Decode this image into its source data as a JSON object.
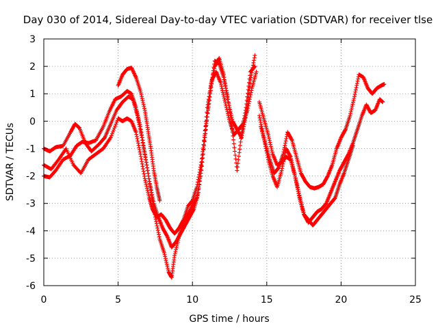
{
  "chart_data": {
    "type": "scatter",
    "title": "Day 030 of 2014, Sidereal Day-to-day VTEC variation (SDTVAR) for receiver tlse",
    "xlabel": "GPS time / hours",
    "ylabel": "SDTVAR / TECUs",
    "xlim": [
      0,
      25
    ],
    "ylim": [
      -6,
      3
    ],
    "x_ticks": [
      "0",
      "5",
      "10",
      "15",
      "20",
      "25"
    ],
    "y_ticks": [
      "3",
      "2",
      "1",
      "0",
      "-1",
      "-2",
      "-3",
      "-4",
      "-5",
      "-6"
    ],
    "grid": true,
    "legend": "none",
    "marker": "plus",
    "color": "#ff0000",
    "series": [
      {
        "x": [
          0,
          0.4,
          0.8,
          1.3,
          1.8,
          2.2,
          2.6,
          3.0,
          3.5,
          4.0,
          4.4,
          4.8,
          5.2,
          5.6,
          5.9,
          6.2,
          6.5,
          6.8,
          7.1,
          7.4,
          7.7,
          8.0,
          8.3,
          8.6,
          8.9,
          9.2,
          9.5,
          9.8,
          10.1,
          10.4,
          10.7,
          11.0,
          11.3,
          11.6,
          11.9,
          12.2,
          12.5,
          12.8,
          13.1,
          13.4,
          13.7,
          14.0,
          14.3
        ],
        "y": [
          -2.0,
          -2.05,
          -1.8,
          -1.4,
          -1.25,
          -0.9,
          -0.75,
          -0.8,
          -0.7,
          -0.2,
          0.35,
          0.8,
          0.9,
          1.1,
          1.0,
          0.5,
          -0.2,
          -1.2,
          -2.2,
          -3.0,
          -3.5,
          -3.9,
          -4.2,
          -4.6,
          -4.4,
          -4.1,
          -3.8,
          -3.5,
          -3.2,
          -2.6,
          -1.2,
          0.5,
          1.5,
          1.8,
          1.4,
          0.7,
          0.0,
          -0.5,
          -0.3,
          -0.1,
          0.4,
          1.2,
          1.8
        ]
      },
      {
        "x": [
          0,
          0.4,
          0.8,
          1.3,
          1.8,
          2.1,
          2.4,
          2.8,
          3.2,
          3.7,
          4.1,
          4.5,
          4.9,
          5.3,
          5.7,
          6.0,
          6.3,
          6.6,
          6.9,
          7.2,
          7.5,
          7.8,
          8.1,
          8.4,
          8.6,
          8.8,
          9.1,
          9.4,
          9.7,
          10.0,
          10.3,
          10.6,
          10.9,
          11.2,
          11.5,
          11.8,
          12.1,
          12.4,
          12.7,
          13.0,
          13.3,
          13.6,
          13.9,
          14.2
        ],
        "y": [
          -1.0,
          -1.1,
          -0.95,
          -0.9,
          -0.4,
          -0.1,
          -0.25,
          -0.8,
          -1.1,
          -0.85,
          -0.6,
          -0.1,
          0.4,
          0.7,
          0.9,
          0.8,
          0.2,
          -0.6,
          -1.5,
          -2.5,
          -3.5,
          -4.3,
          -4.8,
          -5.5,
          -5.7,
          -4.9,
          -4.2,
          -3.7,
          -3.4,
          -3.1,
          -2.8,
          -1.8,
          -0.3,
          1.2,
          2.0,
          2.3,
          1.7,
          0.7,
          0.0,
          -0.3,
          -0.6,
          0.2,
          1.5,
          2.4
        ]
      },
      {
        "x": [
          0,
          0.5,
          1.0,
          1.5,
          2.0,
          2.5,
          3.0,
          3.5,
          4.0,
          4.5,
          5.0,
          5.3,
          5.6,
          5.9,
          6.2,
          6.5,
          6.8,
          7.1,
          7.3,
          7.6,
          7.9,
          8.2,
          8.5,
          8.8,
          9.1,
          9.4,
          9.7,
          10.0,
          10.3,
          10.6,
          10.9,
          11.2,
          11.5,
          11.8,
          12.1,
          12.4,
          12.7,
          13.0,
          13.3,
          13.6,
          13.9,
          14.2
        ],
        "y": [
          -1.6,
          -1.75,
          -1.4,
          -1.0,
          -1.6,
          -1.9,
          -1.4,
          -1.2,
          -1.0,
          -0.6,
          0.1,
          0.0,
          0.1,
          0.0,
          -0.4,
          -1.2,
          -2.1,
          -2.8,
          -3.2,
          -3.5,
          -3.4,
          -3.6,
          -3.9,
          -4.1,
          -3.9,
          -3.6,
          -3.1,
          -2.9,
          -2.4,
          -1.5,
          -0.2,
          1.0,
          2.2,
          2.1,
          1.6,
          0.8,
          -0.4,
          -1.8,
          -0.5,
          0.5,
          1.8,
          2.0
        ]
      },
      {
        "x": [
          5.0,
          5.3,
          5.6,
          5.9,
          6.2,
          6.5,
          6.8,
          7.0,
          7.2,
          7.4,
          7.6,
          7.8
        ],
        "y": [
          1.3,
          1.7,
          1.9,
          1.95,
          1.6,
          1.1,
          0.4,
          -0.3,
          -1.0,
          -1.8,
          -2.4,
          -2.9
        ]
      },
      {
        "x": [
          14.5,
          14.8,
          15.1,
          15.4,
          15.7,
          16.0,
          16.3,
          16.6,
          16.9,
          17.2,
          17.5,
          17.8,
          18.1,
          18.4,
          18.7,
          19.0,
          19.3,
          19.6,
          19.9,
          20.2,
          20.5,
          20.8,
          21.1,
          21.4,
          21.7,
          22.0,
          22.3,
          22.6,
          22.8
        ],
        "y": [
          0.7,
          0.1,
          -0.5,
          -1.2,
          -1.6,
          -1.5,
          -1.3,
          -1.4,
          -2.0,
          -2.7,
          -3.4,
          -3.7,
          -3.5,
          -3.3,
          -3.2,
          -3.0,
          -2.6,
          -2.2,
          -1.8,
          -1.5,
          -1.2,
          -0.8,
          -0.3,
          0.2,
          0.6,
          0.3,
          0.4,
          0.8,
          0.7
        ]
      },
      {
        "x": [
          14.5,
          14.8,
          15.1,
          15.4,
          15.7,
          16.0,
          16.3,
          16.6,
          16.9,
          17.2,
          17.5,
          17.8,
          18.1,
          18.4,
          18.7,
          19.0,
          19.3,
          19.6,
          19.9,
          20.2,
          20.5,
          20.8
        ],
        "y": [
          0.2,
          -0.6,
          -1.4,
          -2.0,
          -2.4,
          -1.8,
          -1.0,
          -1.3,
          -2.0,
          -2.8,
          -3.4,
          -3.6,
          -3.8,
          -3.6,
          -3.4,
          -3.2,
          -3.0,
          -2.8,
          -2.3,
          -1.9,
          -1.4,
          -0.9
        ]
      },
      {
        "x": [
          14.6,
          14.9,
          15.2,
          15.5,
          15.8,
          16.1,
          16.4,
          16.7,
          17.0,
          17.3,
          17.6,
          17.9,
          18.2,
          18.5,
          18.8,
          19.1,
          19.4,
          19.7,
          20.0,
          20.3,
          20.6,
          20.9,
          21.2,
          21.5,
          21.8,
          22.1,
          22.4,
          22.7,
          22.9
        ],
        "y": [
          -0.2,
          -0.8,
          -1.4,
          -1.9,
          -1.7,
          -1.2,
          -0.4,
          -0.7,
          -1.3,
          -1.9,
          -2.2,
          -2.4,
          -2.45,
          -2.4,
          -2.3,
          -2.0,
          -1.6,
          -1.0,
          -0.6,
          -0.3,
          0.2,
          0.9,
          1.7,
          1.6,
          1.2,
          1.0,
          1.2,
          1.3,
          1.35
        ]
      }
    ]
  }
}
